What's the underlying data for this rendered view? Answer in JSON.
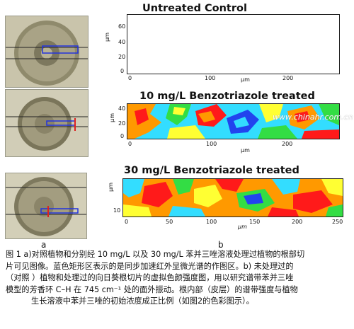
{
  "panels": [
    {
      "title": "Untreated Control",
      "y_ticks": [
        "60",
        "40",
        "20",
        "0"
      ],
      "x_ticks": [
        "0",
        "100",
        "200"
      ],
      "unit_y": "μm",
      "unit_x": "μm"
    },
    {
      "title": "10 mg/L Benzotriazole treated",
      "y_ticks": [
        "40",
        "20",
        "0"
      ],
      "x_ticks": [
        "0",
        "100",
        "200"
      ],
      "unit_y": "μm",
      "unit_x": "μm"
    },
    {
      "title": "30 mg/L Benzotriazole treated",
      "y_ticks": [
        "10"
      ],
      "x_ticks": [
        "0",
        "50",
        "100",
        "150",
        "200",
        "250"
      ],
      "unit_y": "μm",
      "unit_x": "μm"
    }
  ],
  "panel_labels": {
    "a": "a",
    "b": "b"
  },
  "watermark": "www.chinahr.com.cn",
  "colors": {
    "red": "#ff1a1a",
    "orange": "#ff9900",
    "yellow": "#ffff33",
    "green": "#33dd44",
    "cyan": "#33ddff",
    "blue": "#2244ee",
    "white": "#ffffff"
  },
  "caption": {
    "lines": [
      "图 1 a)对照植物和分别经 10 mg/L 以及 30 mg/L 苯并三唑溶液处理过植物的根部切",
      "片可见图像。蓝色矩形区表示的是同步加速红外显微光谱的作图区。b) 未处理过的",
      "（对照 ）植物和处理过的向日葵根切片的虚拟色颜强度图，用以研究谱带苯并三唑",
      "模型的芳香环 C–H 在 745 cm⁻¹ 处的面外振动。根内部（皮层）的谱带强度与植物",
      "生长溶液中苯并三唑的初始浓度成正比例（如图2的色彩图示）。"
    ]
  }
}
